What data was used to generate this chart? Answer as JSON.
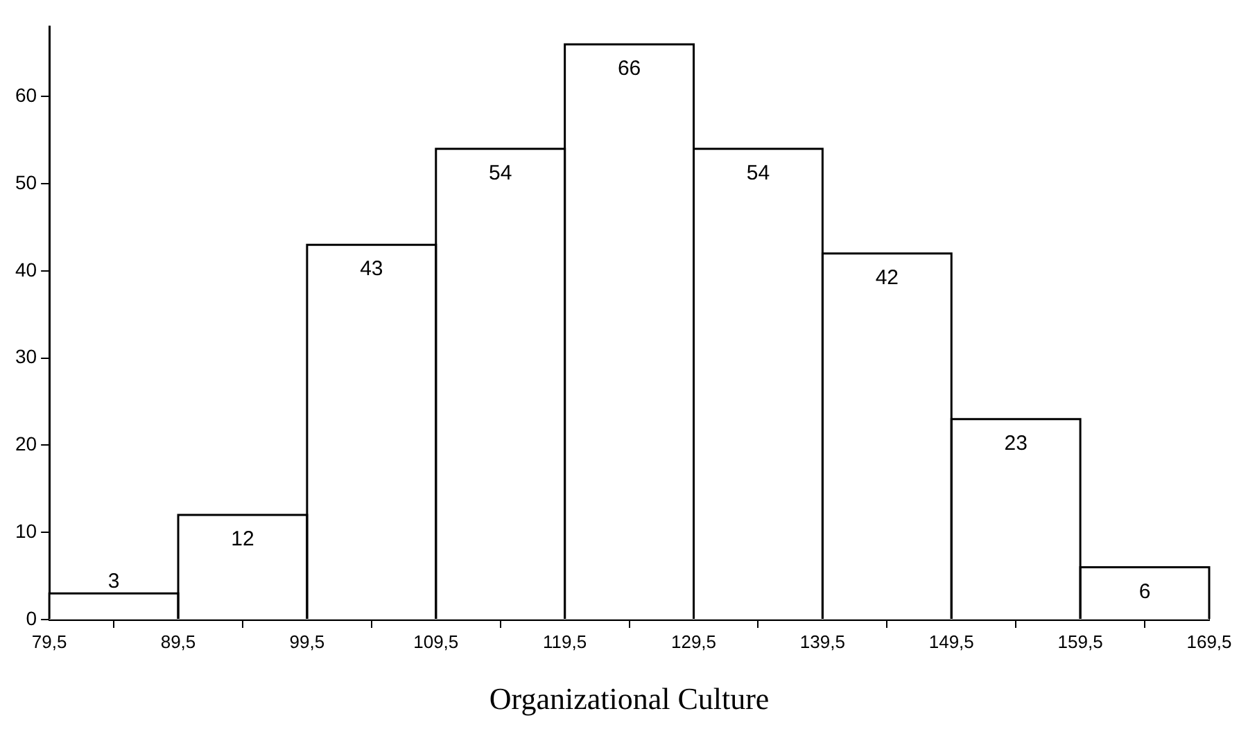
{
  "chart_data": {
    "type": "histogram",
    "xlabel": "Organizational Culture",
    "bins": [
      79.5,
      89.5,
      99.5,
      109.5,
      119.5,
      129.5,
      139.5,
      149.5,
      159.5,
      169.5
    ],
    "values": [
      3,
      12,
      43,
      54,
      66,
      54,
      42,
      23,
      6
    ],
    "color": "#ffffff",
    "xlim": [
      79.5,
      169.5
    ],
    "xticks": [
      {
        "value": 79.5,
        "label": "79,5"
      },
      {
        "value": 89.5,
        "label": "89,5"
      },
      {
        "value": 99.5,
        "label": "99,5"
      },
      {
        "value": 109.5,
        "label": "109,5"
      },
      {
        "value": 119.5,
        "label": "119,5"
      },
      {
        "value": 129.5,
        "label": "129,5"
      },
      {
        "value": 139.5,
        "label": "139,5"
      },
      {
        "value": 149.5,
        "label": "149,5"
      },
      {
        "value": 159.5,
        "label": "159,5"
      },
      {
        "value": 169.5,
        "label": "169,5"
      }
    ],
    "ylim": [
      0,
      68
    ],
    "yticks": [
      0,
      10,
      20,
      30,
      40,
      50,
      60
    ],
    "data_labels": true,
    "grid": false,
    "legend": false
  }
}
